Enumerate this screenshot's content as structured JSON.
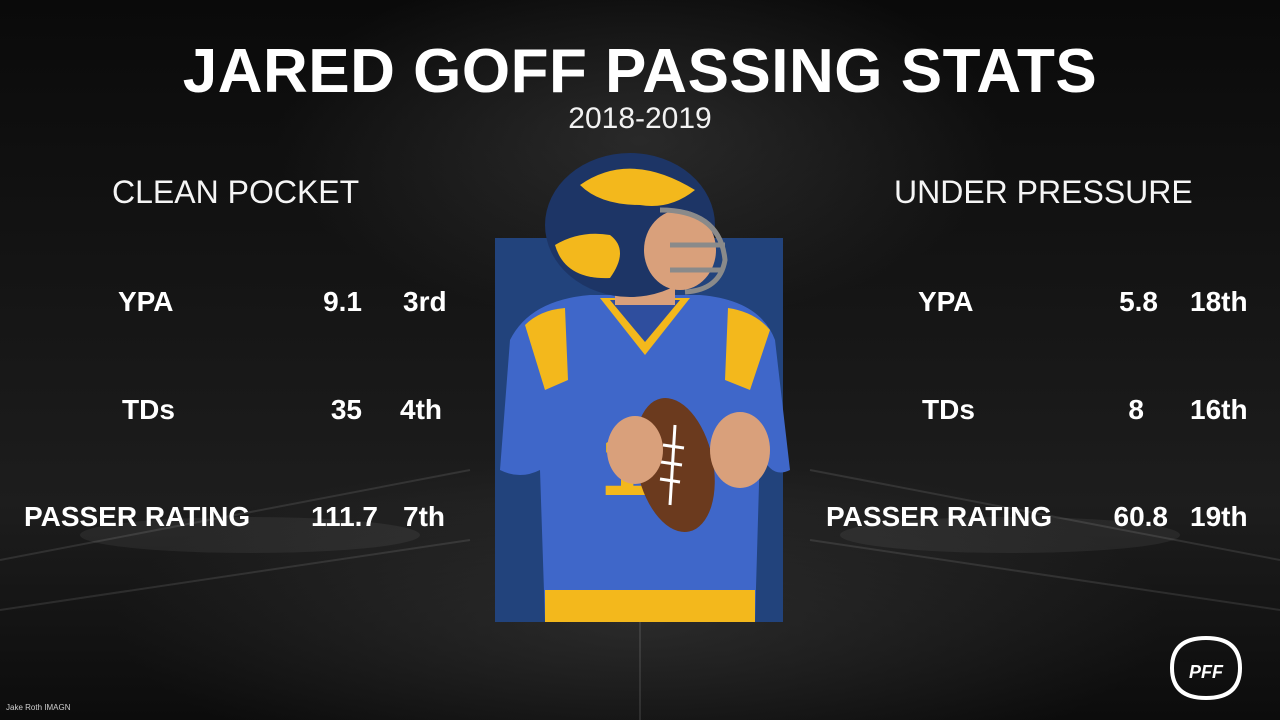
{
  "title": "JARED GOFF PASSING STATS",
  "subtitle": "2018-2019",
  "clean_pocket": {
    "heading": "CLEAN POCKET",
    "rows": [
      {
        "label": "YPA",
        "value": "9.1",
        "rank": "3rd"
      },
      {
        "label": "TDs",
        "value": "35",
        "rank": "4th"
      },
      {
        "label": "PASSER RATING",
        "value": "111.7",
        "rank": "7th"
      }
    ]
  },
  "under_pressure": {
    "heading": "UNDER PRESSURE",
    "rows": [
      {
        "label": "YPA",
        "value": "5.8",
        "rank": "18th"
      },
      {
        "label": "TDs",
        "value": "8",
        "rank": "16th"
      },
      {
        "label": "PASSER RATING",
        "value": "60.8",
        "rank": "19th"
      }
    ]
  },
  "photo_credit": "Jake Roth IMAGN",
  "logo_text": "PFF",
  "colors": {
    "photo_bg": "#22437c",
    "jersey": "#3f67c9",
    "gold": "#f3b81c",
    "text": "#ffffff"
  }
}
